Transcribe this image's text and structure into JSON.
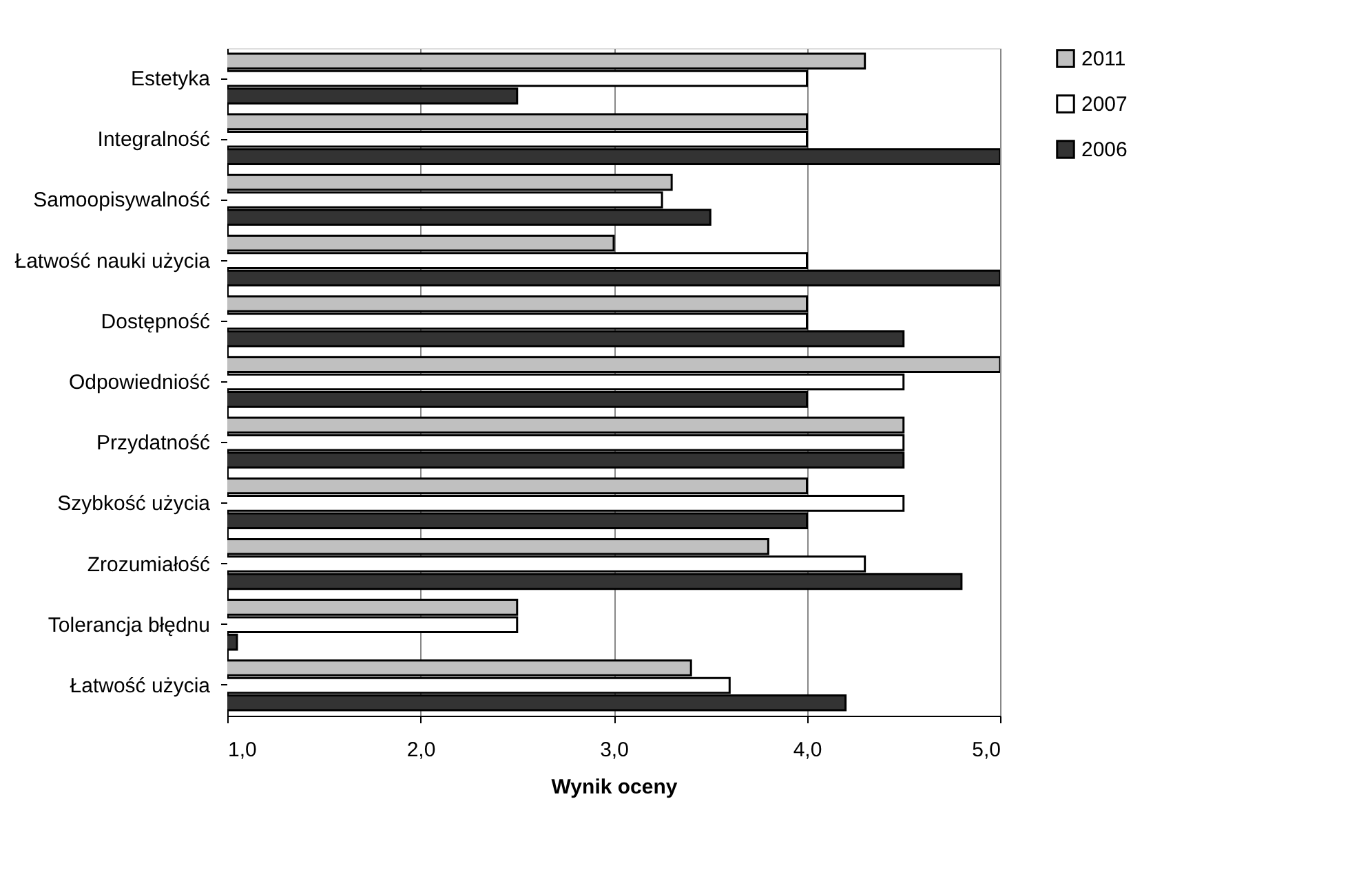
{
  "chart_data": {
    "type": "bar",
    "orientation": "horizontal",
    "xlabel": "Wynik oceny",
    "categories": [
      "Estetyka",
      "Integralność",
      "Samoopisywalność",
      "Łatwość nauki użycia",
      "Dostępność",
      "Odpowiedniość",
      "Przydatność",
      "Szybkość użycia",
      "Zrozumiałość",
      "Tolerancja błędnu",
      "Łatwość użycia"
    ],
    "series": [
      {
        "name": "2011",
        "color": "#c0c0c0",
        "values": [
          4.3,
          4.0,
          3.3,
          3.0,
          4.0,
          5.0,
          4.5,
          4.0,
          3.8,
          2.5,
          3.4
        ]
      },
      {
        "name": "2007",
        "color": "#ffffff",
        "values": [
          4.0,
          4.0,
          3.25,
          4.0,
          4.0,
          4.5,
          4.5,
          4.5,
          4.3,
          2.5,
          3.6
        ]
      },
      {
        "name": "2006",
        "color": "#333333",
        "values": [
          2.5,
          5.0,
          3.5,
          5.0,
          4.5,
          4.0,
          4.5,
          4.0,
          4.8,
          1.05,
          4.2
        ]
      }
    ],
    "xlim": [
      1.0,
      5.0
    ],
    "xticks": [
      {
        "value": 1.0,
        "label": "1,0"
      },
      {
        "value": 2.0,
        "label": "2,0"
      },
      {
        "value": 3.0,
        "label": "3,0"
      },
      {
        "value": 4.0,
        "label": "4,0"
      },
      {
        "value": 5.0,
        "label": "5,0"
      }
    ],
    "grid": "x",
    "legend": "right"
  }
}
